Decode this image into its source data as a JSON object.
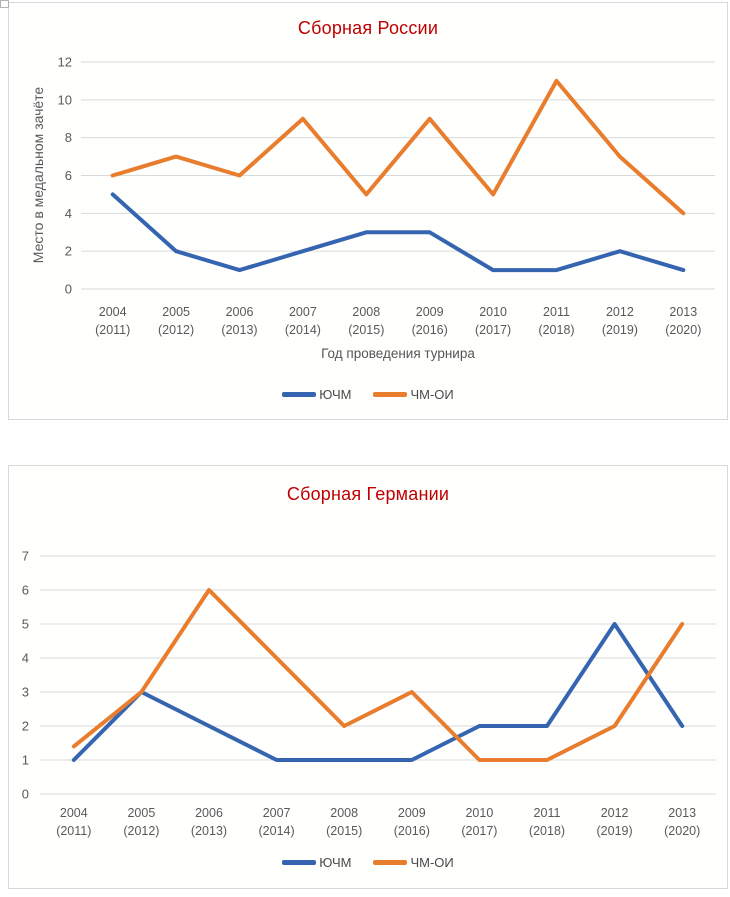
{
  "page": {
    "background": "#ffffff",
    "chart_frame_border": "#d8d8d8",
    "gridline_color": "#d9d9d9",
    "axis_text_color": "#595959",
    "title_color": "#c00000"
  },
  "chart_data": [
    {
      "type": "line",
      "title": "Сборная России",
      "title_color": "#c00000",
      "categories": [
        "2004 (2011)",
        "2005 (2012)",
        "2006 (2013)",
        "2007 (2014)",
        "2008 (2015)",
        "2009 (2016)",
        "2010 (2017)",
        "2011 (2018)",
        "2012 (2019)",
        "2013 (2020)"
      ],
      "series": [
        {
          "name": "ЮЧМ",
          "color": "#3565b0",
          "values": [
            5,
            2,
            1,
            2,
            3,
            3,
            1,
            1,
            2,
            1
          ]
        },
        {
          "name": "ЧМ-ОИ",
          "color": "#e87d2e",
          "values": [
            6,
            7,
            6,
            9,
            5,
            9,
            5,
            11,
            7,
            4
          ]
        }
      ],
      "xlabel": "Год проведения турнира",
      "ylabel": "Место в медальном зачёте",
      "ylim": [
        0,
        12
      ],
      "ytick_step": 2,
      "grid": true,
      "legend_position": "bottom"
    },
    {
      "type": "line",
      "title": "Сборная Германии",
      "title_color": "#c00000",
      "categories": [
        "2004 (2011)",
        "2005 (2012)",
        "2006 (2013)",
        "2007 (2014)",
        "2008 (2015)",
        "2009 (2016)",
        "2010 (2017)",
        "2011 (2018)",
        "2012 (2019)",
        "2013 (2020)"
      ],
      "series": [
        {
          "name": "ЮЧМ",
          "color": "#3565b0",
          "values": [
            1,
            3,
            2,
            1,
            1,
            1,
            2,
            2,
            5,
            2
          ]
        },
        {
          "name": "ЧМ-ОИ",
          "color": "#e87d2e",
          "values": [
            1.4,
            3,
            6,
            4,
            2,
            3,
            1,
            1,
            2,
            5
          ]
        }
      ],
      "xlabel": "",
      "ylabel": "",
      "ylim": [
        0,
        7
      ],
      "ytick_step": 1,
      "grid": true,
      "legend_position": "bottom"
    }
  ]
}
